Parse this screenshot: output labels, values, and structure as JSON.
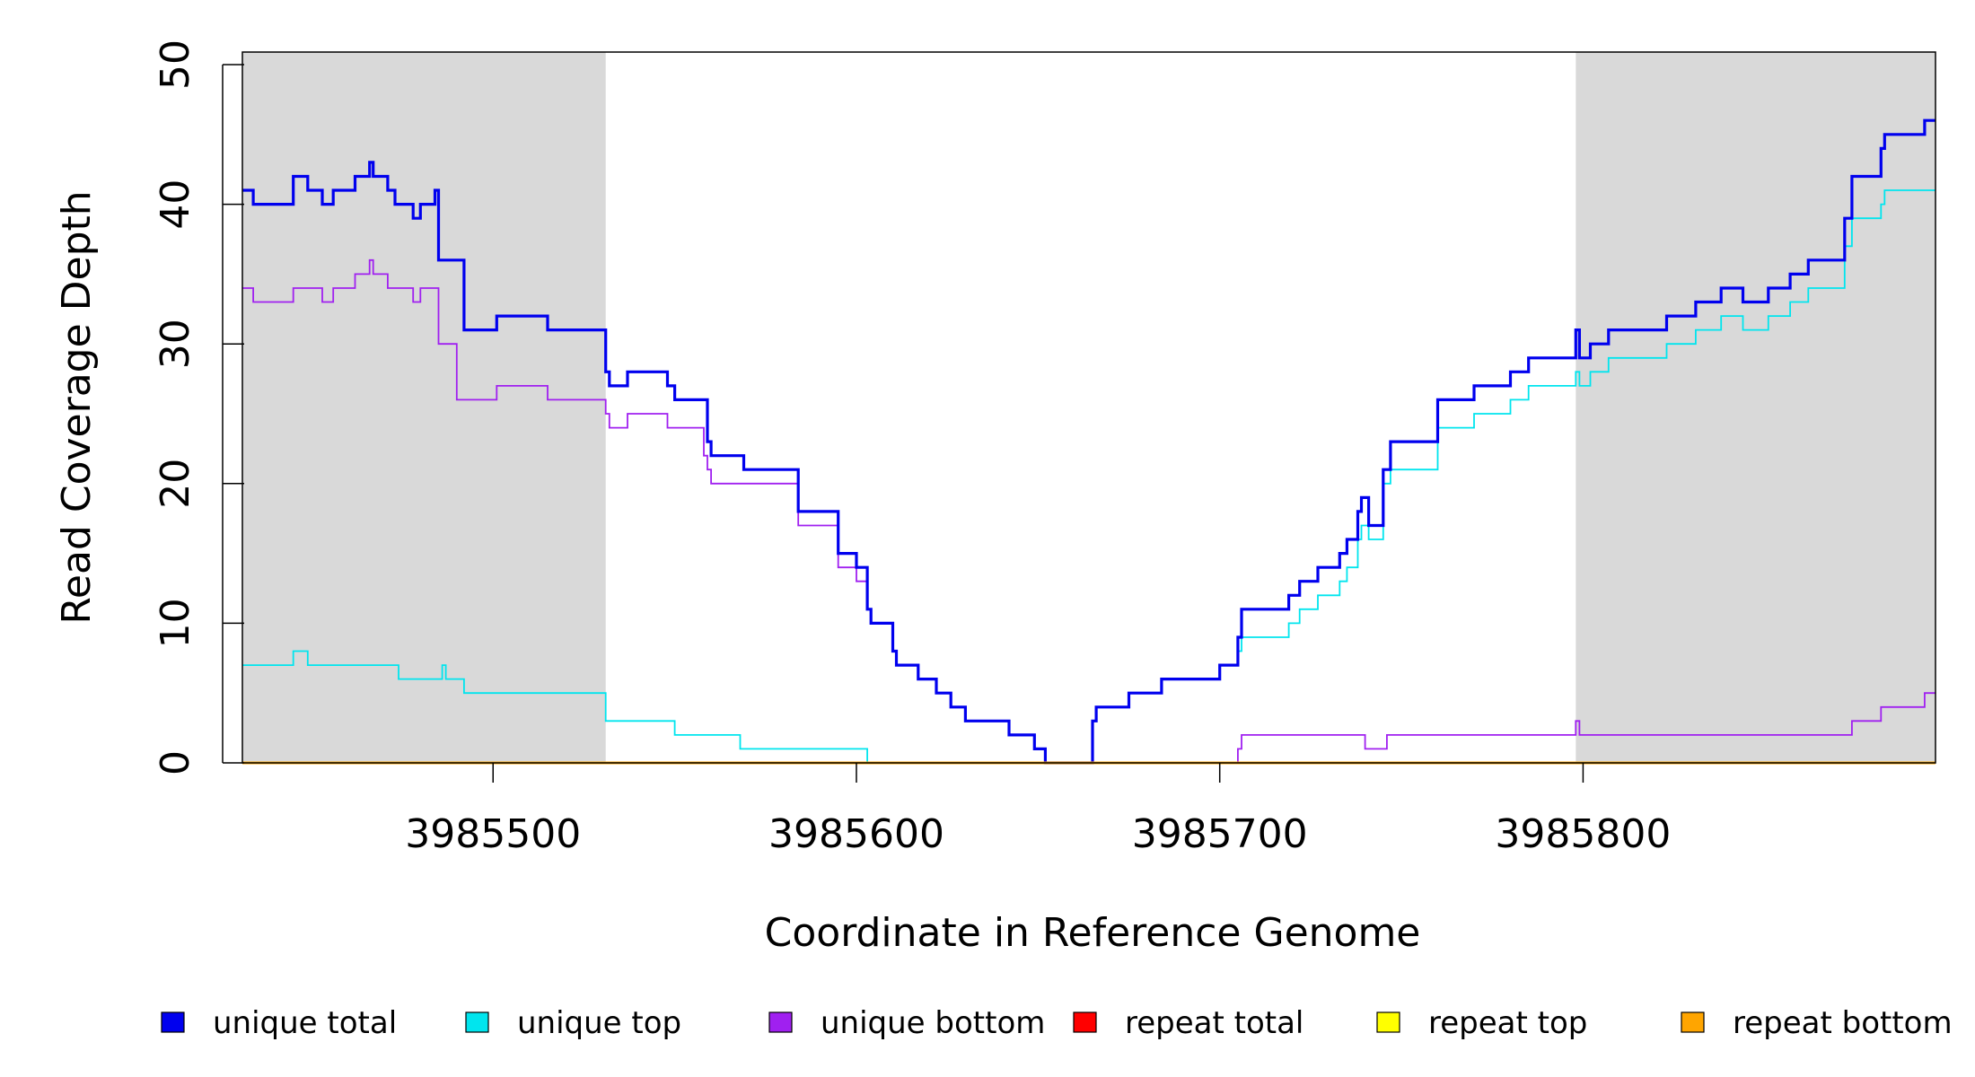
{
  "chart_data": {
    "type": "line",
    "title": "",
    "xlabel": "Coordinate in Reference Genome",
    "ylabel": "Read Coverage Depth",
    "xlim": [
      3985431,
      3985897
    ],
    "ylim": [
      0,
      50
    ],
    "x_ticks": [
      3985500,
      3985600,
      3985700,
      3985800
    ],
    "y_ticks": [
      0,
      10,
      20,
      30,
      40,
      50
    ],
    "shaded_regions": [
      [
        3985431,
        3985531
      ],
      [
        3985798,
        3985897
      ]
    ],
    "shade_color": "#d9d9d9",
    "grid": false,
    "legend_position": "bottom",
    "series": [
      {
        "name": "unique total",
        "color": "#0000ee",
        "points": [
          [
            3985431,
            41
          ],
          [
            3985434,
            40
          ],
          [
            3985445,
            42
          ],
          [
            3985449,
            41
          ],
          [
            3985453,
            40
          ],
          [
            3985456,
            41
          ],
          [
            3985462,
            42
          ],
          [
            3985466,
            43
          ],
          [
            3985467,
            42
          ],
          [
            3985471,
            41
          ],
          [
            3985473,
            40
          ],
          [
            3985478,
            39
          ],
          [
            3985480,
            40
          ],
          [
            3985484,
            41
          ],
          [
            3985485,
            36
          ],
          [
            3985492,
            31
          ],
          [
            3985501,
            32
          ],
          [
            3985515,
            31
          ],
          [
            3985531,
            28
          ],
          [
            3985532,
            27
          ],
          [
            3985537,
            28
          ],
          [
            3985548,
            27
          ],
          [
            3985550,
            26
          ],
          [
            3985559,
            23
          ],
          [
            3985560,
            22
          ],
          [
            3985569,
            21
          ],
          [
            3985584,
            18
          ],
          [
            3985595,
            15
          ],
          [
            3985600,
            14
          ],
          [
            3985603,
            11
          ],
          [
            3985604,
            10
          ],
          [
            3985610,
            8
          ],
          [
            3985611,
            7
          ],
          [
            3985617,
            6
          ],
          [
            3985622,
            5
          ],
          [
            3985626,
            4
          ],
          [
            3985630,
            3
          ],
          [
            3985642,
            2
          ],
          [
            3985649,
            1
          ],
          [
            3985652,
            0
          ],
          [
            3985665,
            3
          ],
          [
            3985666,
            4
          ],
          [
            3985675,
            5
          ],
          [
            3985684,
            6
          ],
          [
            3985700,
            7
          ],
          [
            3985705,
            9
          ],
          [
            3985706,
            11
          ],
          [
            3985719,
            12
          ],
          [
            3985722,
            13
          ],
          [
            3985727,
            14
          ],
          [
            3985733,
            15
          ],
          [
            3985735,
            16
          ],
          [
            3985738,
            18
          ],
          [
            3985739,
            19
          ],
          [
            3985741,
            17
          ],
          [
            3985745,
            21
          ],
          [
            3985747,
            23
          ],
          [
            3985760,
            26
          ],
          [
            3985770,
            27
          ],
          [
            3985780,
            28
          ],
          [
            3985785,
            29
          ],
          [
            3985798,
            31
          ],
          [
            3985799,
            29
          ],
          [
            3985802,
            30
          ],
          [
            3985807,
            31
          ],
          [
            3985823,
            32
          ],
          [
            3985831,
            33
          ],
          [
            3985838,
            34
          ],
          [
            3985844,
            33
          ],
          [
            3985851,
            34
          ],
          [
            3985857,
            35
          ],
          [
            3985862,
            36
          ],
          [
            3985872,
            39
          ],
          [
            3985874,
            42
          ],
          [
            3985882,
            44
          ],
          [
            3985883,
            45
          ],
          [
            3985894,
            46
          ],
          [
            3985897,
            46
          ]
        ]
      },
      {
        "name": "unique top",
        "color": "#00e5ee",
        "points": [
          [
            3985431,
            7
          ],
          [
            3985445,
            8
          ],
          [
            3985449,
            7
          ],
          [
            3985474,
            6
          ],
          [
            3985486,
            7
          ],
          [
            3985487,
            6
          ],
          [
            3985492,
            5
          ],
          [
            3985531,
            3
          ],
          [
            3985550,
            2
          ],
          [
            3985568,
            1
          ],
          [
            3985603,
            0
          ],
          [
            3985665,
            3
          ],
          [
            3985666,
            4
          ],
          [
            3985675,
            5
          ],
          [
            3985684,
            6
          ],
          [
            3985700,
            7
          ],
          [
            3985705,
            8
          ],
          [
            3985706,
            9
          ],
          [
            3985719,
            10
          ],
          [
            3985722,
            11
          ],
          [
            3985727,
            12
          ],
          [
            3985733,
            13
          ],
          [
            3985735,
            14
          ],
          [
            3985738,
            16
          ],
          [
            3985739,
            17
          ],
          [
            3985741,
            16
          ],
          [
            3985745,
            20
          ],
          [
            3985747,
            21
          ],
          [
            3985760,
            24
          ],
          [
            3985770,
            25
          ],
          [
            3985780,
            26
          ],
          [
            3985785,
            27
          ],
          [
            3985798,
            28
          ],
          [
            3985799,
            27
          ],
          [
            3985802,
            28
          ],
          [
            3985807,
            29
          ],
          [
            3985823,
            30
          ],
          [
            3985831,
            31
          ],
          [
            3985838,
            32
          ],
          [
            3985844,
            31
          ],
          [
            3985851,
            32
          ],
          [
            3985857,
            33
          ],
          [
            3985862,
            34
          ],
          [
            3985872,
            37
          ],
          [
            3985874,
            39
          ],
          [
            3985882,
            40
          ],
          [
            3985883,
            41
          ],
          [
            3985897,
            41
          ]
        ]
      },
      {
        "name": "unique bottom",
        "color": "#a020f0",
        "points": [
          [
            3985431,
            34
          ],
          [
            3985434,
            33
          ],
          [
            3985445,
            34
          ],
          [
            3985453,
            33
          ],
          [
            3985456,
            34
          ],
          [
            3985462,
            35
          ],
          [
            3985466,
            36
          ],
          [
            3985467,
            35
          ],
          [
            3985471,
            34
          ],
          [
            3985478,
            33
          ],
          [
            3985480,
            34
          ],
          [
            3985485,
            30
          ],
          [
            3985490,
            26
          ],
          [
            3985501,
            27
          ],
          [
            3985515,
            26
          ],
          [
            3985531,
            25
          ],
          [
            3985532,
            24
          ],
          [
            3985537,
            25
          ],
          [
            3985548,
            24
          ],
          [
            3985558,
            22
          ],
          [
            3985559,
            21
          ],
          [
            3985560,
            20
          ],
          [
            3985584,
            17
          ],
          [
            3985595,
            14
          ],
          [
            3985600,
            13
          ],
          [
            3985603,
            11
          ],
          [
            3985604,
            10
          ],
          [
            3985610,
            8
          ],
          [
            3985611,
            7
          ],
          [
            3985617,
            6
          ],
          [
            3985622,
            5
          ],
          [
            3985626,
            4
          ],
          [
            3985630,
            3
          ],
          [
            3985642,
            2
          ],
          [
            3985649,
            1
          ],
          [
            3985652,
            0
          ],
          [
            3985705,
            1
          ],
          [
            3985706,
            2
          ],
          [
            3985740,
            1
          ],
          [
            3985746,
            2
          ],
          [
            3985798,
            3
          ],
          [
            3985799,
            2
          ],
          [
            3985874,
            3
          ],
          [
            3985882,
            4
          ],
          [
            3985894,
            5
          ],
          [
            3985897,
            5
          ]
        ]
      },
      {
        "name": "repeat total",
        "color": "#ff0000",
        "points": [
          [
            3985431,
            0
          ],
          [
            3985897,
            0
          ]
        ]
      },
      {
        "name": "repeat top",
        "color": "#ffff00",
        "points": [
          [
            3985431,
            0
          ],
          [
            3985897,
            0
          ]
        ]
      },
      {
        "name": "repeat bottom",
        "color": "#ffa500",
        "points": [
          [
            3985431,
            0
          ],
          [
            3985897,
            0
          ]
        ]
      }
    ]
  }
}
